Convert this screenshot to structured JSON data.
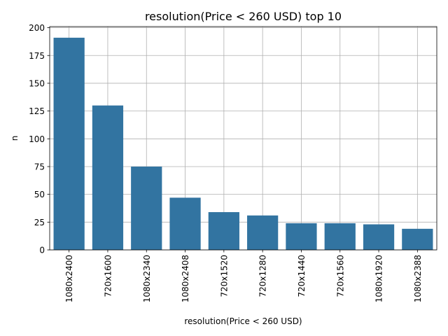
{
  "chart_data": {
    "type": "bar",
    "title": "resolution(Price < 260 USD) top 10",
    "xlabel": "resolution(Price < 260 USD)",
    "ylabel": "n",
    "categories": [
      "1080x2400",
      "720x1600",
      "1080x2340",
      "1080x2408",
      "720x1520",
      "720x1280",
      "720x1440",
      "720x1560",
      "1080x1920",
      "1080x2388"
    ],
    "values": [
      191,
      130,
      75,
      47,
      34,
      31,
      24,
      24,
      23,
      19
    ],
    "ylim": [
      0,
      201
    ],
    "yticks": [
      0,
      25,
      50,
      75,
      100,
      125,
      150,
      175,
      200
    ],
    "grid": true,
    "bar_color": "#3274a1"
  }
}
